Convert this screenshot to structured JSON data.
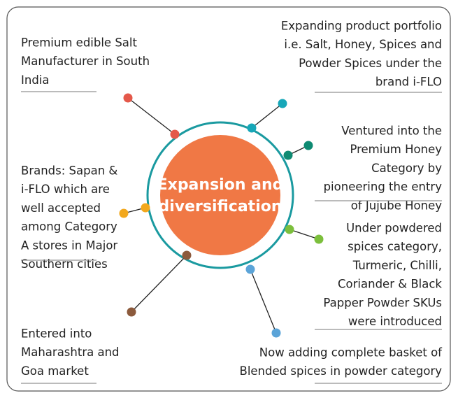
{
  "center": {
    "lines": [
      "Expansion and",
      "diversification"
    ]
  },
  "nodes": [
    {
      "lines": [
        "Premium edible Salt",
        "Manufacturer in South",
        "India"
      ]
    },
    {
      "lines": [
        "Expanding product portfolio",
        "i.e. Salt, Honey, Spices and",
        "Powder Spices under the",
        "brand i-FLO"
      ]
    },
    {
      "lines": [
        "Ventured into the",
        "Premium Honey",
        "Category by",
        "pioneering the entry",
        "of Jujube Honey"
      ]
    },
    {
      "lines": [
        "Under powdered",
        "spices category,",
        "Turmeric, Chilli,",
        "Coriander & Black",
        "Papper Powder SKUs",
        "were introduced"
      ]
    },
    {
      "lines": [
        "Now adding complete basket of",
        "Blended spices in powder category"
      ]
    },
    {
      "lines": [
        "Entered into",
        "Maharashtra and",
        "Goa market"
      ]
    },
    {
      "lines": [
        "Brands: Sapan &",
        "i-FLO which are",
        "well accepted",
        "among Category",
        "A stores in Major",
        "Southern cities"
      ]
    }
  ]
}
